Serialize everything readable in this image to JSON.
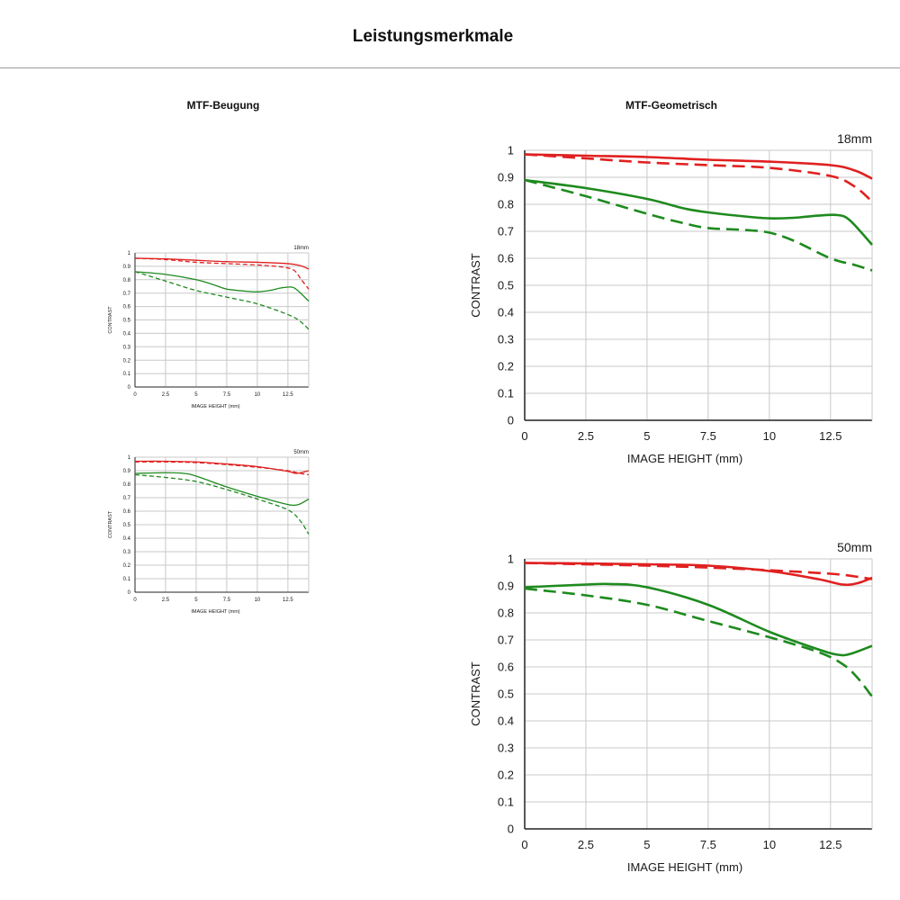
{
  "page_title": "Leistungsmerkmale",
  "sections": {
    "left_title": "MTF-Beugung",
    "right_title": "MTF-Geometrisch"
  },
  "colors": {
    "red": "#e02020",
    "green": "#1e8a1e",
    "grid": "#c8c8c8",
    "axis": "#222222"
  },
  "chart_data": [
    {
      "id": "beugung-18",
      "type": "line",
      "title": "18mm",
      "xlabel": "IMAGE HEIGHT (mm)",
      "ylabel": "CONTRAST",
      "xlim": [
        0,
        14.2
      ],
      "ylim": [
        0,
        1
      ],
      "xticks": [
        0,
        2.5,
        5,
        7.5,
        10,
        12.5
      ],
      "yticks": [
        0,
        0.1,
        0.2,
        0.3,
        0.4,
        0.5,
        0.6,
        0.7,
        0.8,
        0.9,
        1
      ],
      "grid": true,
      "series": [
        {
          "name": "red-solid",
          "color": "red",
          "dash": false,
          "x": [
            0,
            2.5,
            5,
            7.5,
            10,
            12.5,
            13.5,
            14.2
          ],
          "y": [
            0.96,
            0.955,
            0.945,
            0.935,
            0.93,
            0.92,
            0.905,
            0.88
          ]
        },
        {
          "name": "red-dashed",
          "color": "red",
          "dash": true,
          "x": [
            0,
            2.5,
            5,
            7.5,
            10,
            12,
            13,
            13.6,
            14.2
          ],
          "y": [
            0.96,
            0.95,
            0.93,
            0.92,
            0.91,
            0.895,
            0.87,
            0.8,
            0.73
          ]
        },
        {
          "name": "green-solid",
          "color": "green",
          "dash": false,
          "x": [
            0,
            2.5,
            5,
            6.5,
            7.5,
            9,
            10,
            11,
            12,
            12.8,
            13.3,
            14.2
          ],
          "y": [
            0.86,
            0.84,
            0.8,
            0.76,
            0.73,
            0.715,
            0.71,
            0.72,
            0.74,
            0.745,
            0.72,
            0.64
          ]
        },
        {
          "name": "green-dashed",
          "color": "green",
          "dash": true,
          "x": [
            0,
            2.5,
            5,
            7.5,
            10,
            12.5,
            13.5,
            14.2
          ],
          "y": [
            0.86,
            0.79,
            0.72,
            0.67,
            0.62,
            0.54,
            0.49,
            0.43
          ]
        }
      ]
    },
    {
      "id": "beugung-50",
      "type": "line",
      "title": "50mm",
      "xlabel": "IMAGE HEIGHT (mm)",
      "ylabel": "CONTRAST",
      "xlim": [
        0,
        14.2
      ],
      "ylim": [
        0,
        1
      ],
      "xticks": [
        0,
        2.5,
        5,
        7.5,
        10,
        12.5
      ],
      "yticks": [
        0,
        0.1,
        0.2,
        0.3,
        0.4,
        0.5,
        0.6,
        0.7,
        0.8,
        0.9,
        1
      ],
      "grid": true,
      "series": [
        {
          "name": "red-solid",
          "color": "red",
          "dash": false,
          "x": [
            0,
            2.5,
            5,
            7.5,
            10,
            12.5,
            13.2,
            14.2
          ],
          "y": [
            0.97,
            0.97,
            0.965,
            0.95,
            0.93,
            0.895,
            0.88,
            0.9
          ]
        },
        {
          "name": "red-dashed",
          "color": "red",
          "dash": true,
          "x": [
            0,
            2.5,
            5,
            7.5,
            10,
            12.5,
            13.5,
            14.2
          ],
          "y": [
            0.965,
            0.965,
            0.96,
            0.945,
            0.925,
            0.9,
            0.88,
            0.87
          ]
        },
        {
          "name": "green-solid",
          "color": "green",
          "dash": false,
          "x": [
            0,
            2.5,
            4,
            5,
            7.5,
            10,
            12,
            12.8,
            13.4,
            14.2
          ],
          "y": [
            0.88,
            0.885,
            0.88,
            0.86,
            0.78,
            0.71,
            0.66,
            0.645,
            0.65,
            0.69
          ]
        },
        {
          "name": "green-dashed",
          "color": "green",
          "dash": true,
          "x": [
            0,
            2.5,
            5,
            7.5,
            10,
            12.5,
            13.5,
            14.2
          ],
          "y": [
            0.87,
            0.85,
            0.82,
            0.76,
            0.69,
            0.61,
            0.53,
            0.43
          ]
        }
      ]
    },
    {
      "id": "geometrisch-18",
      "type": "line",
      "title": "18mm",
      "xlabel": "IMAGE HEIGHT (mm)",
      "ylabel": "CONTRAST",
      "xlim": [
        0,
        14.2
      ],
      "ylim": [
        0,
        1
      ],
      "xticks": [
        0,
        2.5,
        5,
        7.5,
        10,
        12.5
      ],
      "yticks": [
        0,
        0.1,
        0.2,
        0.3,
        0.4,
        0.5,
        0.6,
        0.7,
        0.8,
        0.9,
        1
      ],
      "grid": true,
      "series": [
        {
          "name": "red-solid",
          "color": "red",
          "dash": false,
          "x": [
            0,
            2.5,
            5,
            7.5,
            10,
            12.5,
            13.5,
            14.2
          ],
          "y": [
            0.985,
            0.98,
            0.975,
            0.965,
            0.958,
            0.945,
            0.925,
            0.895
          ]
        },
        {
          "name": "red-dashed",
          "color": "red",
          "dash": true,
          "x": [
            0,
            2.5,
            5,
            7.5,
            10,
            12.5,
            13.5,
            14.2
          ],
          "y": [
            0.985,
            0.97,
            0.955,
            0.945,
            0.935,
            0.905,
            0.865,
            0.81
          ]
        },
        {
          "name": "green-solid",
          "color": "green",
          "dash": false,
          "x": [
            0,
            2.5,
            5,
            6.5,
            7.5,
            9,
            10,
            11,
            12,
            12.8,
            13.3,
            14.2
          ],
          "y": [
            0.89,
            0.86,
            0.82,
            0.785,
            0.77,
            0.755,
            0.748,
            0.75,
            0.758,
            0.76,
            0.74,
            0.65
          ]
        },
        {
          "name": "green-dashed",
          "color": "green",
          "dash": true,
          "x": [
            0,
            2.5,
            5,
            6.5,
            7.5,
            9,
            10,
            11,
            12.5,
            13.5,
            14.2
          ],
          "y": [
            0.89,
            0.83,
            0.765,
            0.73,
            0.712,
            0.705,
            0.695,
            0.665,
            0.6,
            0.575,
            0.555
          ]
        }
      ]
    },
    {
      "id": "geometrisch-50",
      "type": "line",
      "title": "50mm",
      "xlabel": "IMAGE HEIGHT (mm)",
      "ylabel": "CONTRAST",
      "xlim": [
        0,
        14.2
      ],
      "ylim": [
        0,
        1
      ],
      "xticks": [
        0,
        2.5,
        5,
        7.5,
        10,
        12.5
      ],
      "yticks": [
        0,
        0.1,
        0.2,
        0.3,
        0.4,
        0.5,
        0.6,
        0.7,
        0.8,
        0.9,
        1
      ],
      "grid": true,
      "series": [
        {
          "name": "red-solid",
          "color": "red",
          "dash": false,
          "x": [
            0,
            2.5,
            5,
            7.5,
            10,
            12,
            13,
            13.6,
            14.2
          ],
          "y": [
            0.985,
            0.983,
            0.98,
            0.975,
            0.955,
            0.925,
            0.905,
            0.91,
            0.93
          ]
        },
        {
          "name": "red-dashed",
          "color": "red",
          "dash": true,
          "x": [
            0,
            2.5,
            5,
            7.5,
            10,
            12.5,
            13.5,
            14.2
          ],
          "y": [
            0.985,
            0.98,
            0.975,
            0.968,
            0.958,
            0.945,
            0.935,
            0.925
          ]
        },
        {
          "name": "green-solid",
          "color": "green",
          "dash": false,
          "x": [
            0,
            2.5,
            3.5,
            5,
            7.5,
            10,
            12,
            12.8,
            13.3,
            14.2
          ],
          "y": [
            0.895,
            0.905,
            0.907,
            0.895,
            0.83,
            0.73,
            0.665,
            0.645,
            0.648,
            0.678
          ]
        },
        {
          "name": "green-dashed",
          "color": "green",
          "dash": true,
          "x": [
            0,
            2.5,
            5,
            7.5,
            10,
            12,
            13,
            13.6,
            14.2
          ],
          "y": [
            0.89,
            0.865,
            0.83,
            0.77,
            0.71,
            0.655,
            0.61,
            0.56,
            0.49
          ]
        }
      ]
    }
  ]
}
